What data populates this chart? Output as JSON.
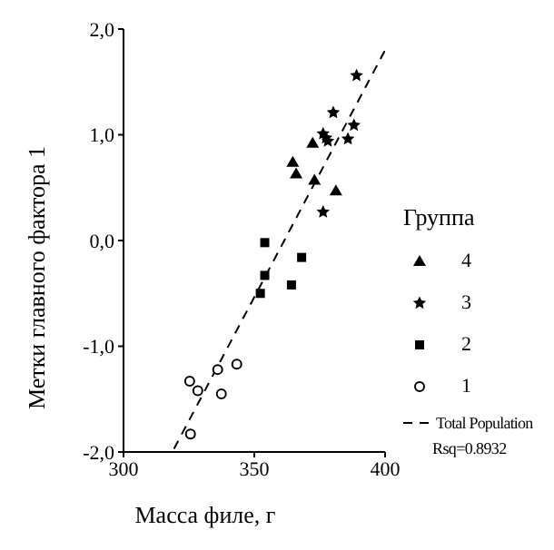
{
  "chart_data": {
    "type": "scatter",
    "xlabel": "Масса филе, г",
    "ylabel": "Метки главного фактора 1",
    "legend_title": "Группа",
    "legend": "right",
    "xlim": [
      300,
      400
    ],
    "xticks": [
      300,
      350,
      400
    ],
    "ylim": [
      -2,
      2
    ],
    "yticks": [
      {
        "value": -2,
        "label": "-2,0"
      },
      {
        "value": -1,
        "label": "-1,0"
      },
      {
        "value": 0,
        "label": "0,0"
      },
      {
        "value": 1,
        "label": "1,0"
      },
      {
        "value": 2,
        "label": "2,0"
      }
    ],
    "series": [
      {
        "name": "4",
        "color": "#000000",
        "marker": "triangle",
        "x": [
          364.7,
          366.0,
          372.3,
          373.0,
          381.2
        ],
        "values": [
          0.74,
          0.63,
          0.92,
          0.57,
          0.47
        ]
      },
      {
        "name": "3",
        "color": "#000000",
        "marker": "star",
        "x": [
          389.1,
          380.2,
          388.1,
          376.3,
          377.4,
          378.1,
          385.8,
          376.3
        ],
        "values": [
          1.56,
          1.21,
          1.09,
          1.01,
          0.97,
          0.94,
          0.96,
          0.27
        ]
      },
      {
        "name": "2",
        "color": "#000000",
        "marker": "square",
        "x": [
          354.0,
          368.1,
          354.0,
          364.2,
          352.3
        ],
        "values": [
          -0.02,
          -0.16,
          -0.33,
          -0.42,
          -0.5
        ]
      },
      {
        "name": "1",
        "color": "#000000",
        "marker": "circle",
        "x": [
          325.3,
          328.4,
          336.0,
          343.3,
          337.4,
          325.6
        ],
        "values": [
          -1.33,
          -1.42,
          -1.22,
          -1.17,
          -1.45,
          -1.83
        ]
      },
      {
        "name": "Total Population",
        "type": "line",
        "color": "#000000",
        "line_style": "dashed",
        "marker": "none",
        "x": [
          319.3,
          400
        ],
        "values": [
          -1.97,
          1.8
        ]
      }
    ],
    "annotations": [
      "Rsq=0.8932"
    ]
  }
}
